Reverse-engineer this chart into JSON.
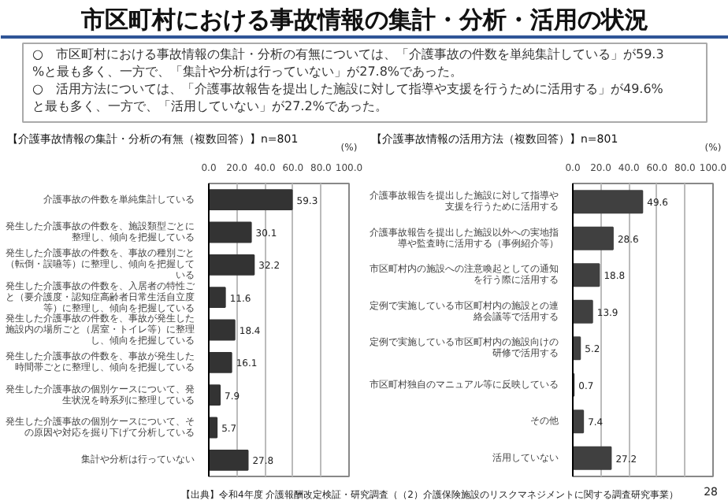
{
  "chart_data": [
    {
      "type": "other",
      "title": "市区町村における事故情報の集計・分析・活用の状況",
      "annotations": [
        "○　市区町村における事故情報の集計・分析の有無については、「介護事故の件数を単純集計している」が59.3%と最も多く、一方で、「集計や分析は行っていない」が27.8%であった。",
        "○　活用方法については、「介護事故報告を提出した施設に対して指導や支援を行うために活用する」が49.6%と最も多く、一方で、「活用していない」が27.2%であった。",
        "【出典】令和4年度 介護報酬改定検証・研究調査（（2）介護保険施設のリスクマネジメントに関する調査研究事業）",
        "28"
      ]
    },
    {
      "type": "bar",
      "orientation": "horizontal",
      "title": "【介護事故情報の集計・分析の有無（複数回答）】n=801",
      "xlabel": "(%)",
      "categories": [
        "介護事故の件数を単純集計している",
        "発生した介護事故の件数を、施設類型ごとに整理し、傾向を把握している",
        "発生した介護事故の件数を、事故の種別ごと（転倒・誤嚥等）に整理し、傾向を把握している",
        "発生した介護事故の件数を、入居者の特性ごと（要介護度・認知症高齢者日常生活自立度等）に整理し、傾向を把握している",
        "発生した介護事故の件数を、事故が発生した施設内の場所ごと（居室・トイレ等）に整理し、傾向を把握している",
        "発生した介護事故の件数を、事故が発生した時間帯ごとに整理し、傾向を把握している",
        "発生した介護事故の個別ケースについて、発生状況を時系列に整理している",
        "発生した介護事故の個別ケースについて、その原因や対応を掘り下げて分析している",
        "集計や分析は行っていない"
      ],
      "values": [
        59.3,
        30.1,
        32.2,
        11.6,
        18.4,
        16.1,
        7.9,
        5.7,
        27.8
      ],
      "color": "#333333",
      "xlim": [
        0,
        100
      ],
      "xticks": [
        {
          "value": 0,
          "label": "0.0"
        },
        {
          "value": 20,
          "label": "20.0"
        },
        {
          "value": 40,
          "label": "40.0"
        },
        {
          "value": 60,
          "label": "60.0"
        },
        {
          "value": 80,
          "label": "80.0"
        },
        {
          "value": 100,
          "label": "100.0"
        }
      ],
      "grid": "x",
      "data_labels": true
    },
    {
      "type": "bar",
      "orientation": "horizontal",
      "title": "【介護事故情報の活用方法（複数回答）】n=801",
      "xlabel": "(%)",
      "categories": [
        "介護事故報告を提出した施設に対して指導や支援を行うために活用する",
        "介護事故報告を提出した施設以外への実地指導や監査時に活用する（事例紹介等）",
        "市区町村内の施設への注意喚起としての通知を行う際に活用する",
        "定例で実施している市区町村内の施設との連絡会議等で活用する",
        "定例で実施している市区町村内の施設向けの研修で活用する",
        "市区町村独自のマニュアル等に反映している",
        "その他",
        "活用していない"
      ],
      "values": [
        49.6,
        28.6,
        18.8,
        13.9,
        5.2,
        0.7,
        7.4,
        27.2
      ],
      "color": "#404040",
      "xlim": [
        0,
        100
      ],
      "xticks": [
        {
          "value": 0,
          "label": "0.0"
        },
        {
          "value": 20,
          "label": "20.0"
        },
        {
          "value": 40,
          "label": "40.0"
        },
        {
          "value": 60,
          "label": "60.0"
        },
        {
          "value": 80,
          "label": "80.0"
        },
        {
          "value": 100,
          "label": "100.0"
        }
      ],
      "grid": "x",
      "data_labels": true
    }
  ]
}
